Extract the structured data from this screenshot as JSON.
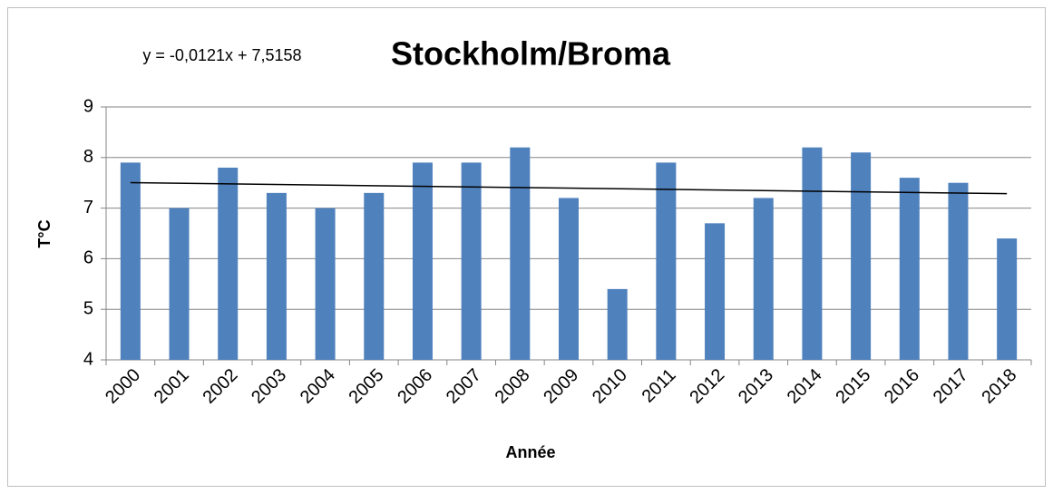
{
  "chart_data": {
    "type": "bar",
    "title": "Stockholm/Broma",
    "categories": [
      "2000",
      "2001",
      "2002",
      "2003",
      "2004",
      "2005",
      "2006",
      "2007",
      "2008",
      "2009",
      "2010",
      "2011",
      "2012",
      "2013",
      "2014",
      "2015",
      "2016",
      "2017",
      "2018"
    ],
    "values": [
      7.9,
      7.0,
      7.8,
      7.3,
      7.0,
      7.3,
      7.9,
      7.9,
      8.2,
      7.2,
      5.4,
      7.9,
      6.7,
      7.2,
      8.2,
      8.1,
      7.6,
      7.5,
      6.4
    ],
    "color": "#4f81bd",
    "ylim": [
      4,
      9
    ],
    "yticks": [
      4,
      5,
      6,
      7,
      8,
      9
    ],
    "grid": true,
    "ylabel": "T°C",
    "xlabel": "Année",
    "trendline": {
      "label": "y = -0,0121x + 7,5158",
      "slope": -0.0121,
      "intercept": 7.5158,
      "color": "#000000"
    }
  }
}
